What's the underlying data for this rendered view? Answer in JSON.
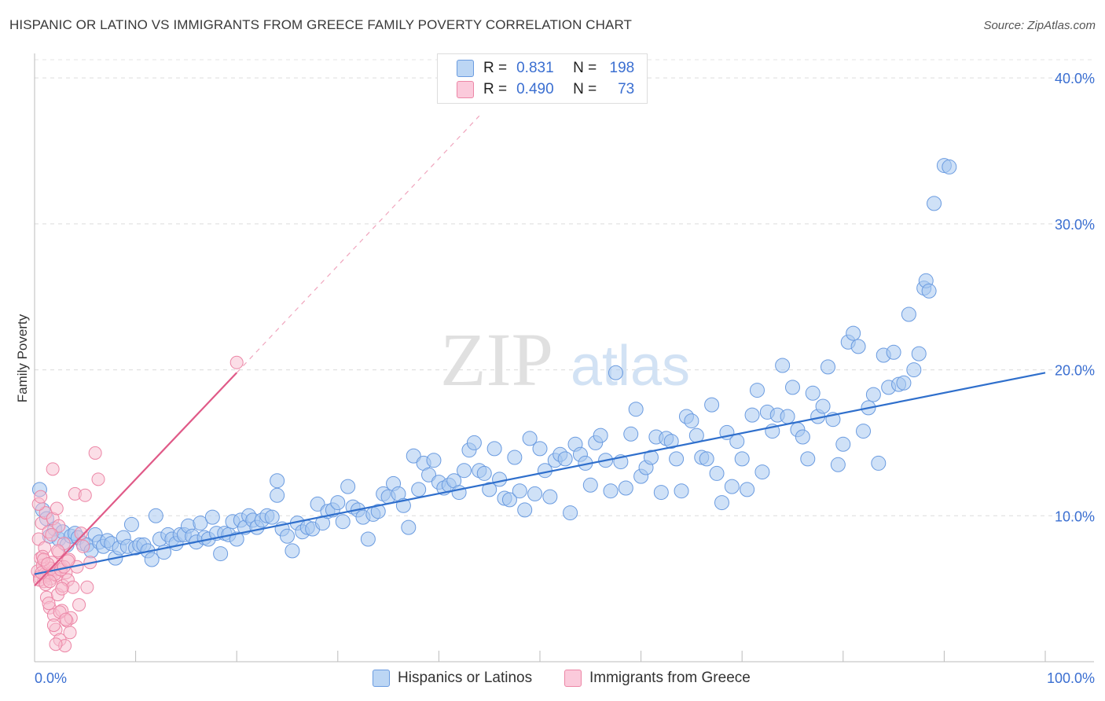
{
  "title": "HISPANIC OR LATINO VS IMMIGRANTS FROM GREECE FAMILY POVERTY CORRELATION CHART",
  "source": "Source: ZipAtlas.com",
  "watermark": {
    "zip": "ZIP",
    "atlas": "atlas"
  },
  "colors": {
    "blue_fill": "#a8c8f0",
    "blue_stroke": "#6a9be0",
    "blue_line": "#2f6fcc",
    "pink_fill": "#f8bdd0",
    "pink_stroke": "#ec86a6",
    "pink_line": "#e05a88",
    "axis_label": "#3b6fd1"
  },
  "legend": {
    "r_label": "R =",
    "n_label": "N =",
    "rows": [
      {
        "swatch": "blue",
        "r": "0.831",
        "n": "198"
      },
      {
        "swatch": "pink",
        "r": "0.490",
        "n": "73"
      }
    ]
  },
  "bottom_legend": [
    {
      "swatch": "blue",
      "label": "Hispanics or Latinos"
    },
    {
      "swatch": "pink",
      "label": "Immigrants from Greece"
    }
  ],
  "chart_data": {
    "type": "scatter",
    "xlabel": "",
    "ylabel": "Family Poverty",
    "xlim": [
      0,
      100
    ],
    "ylim": [
      0,
      42
    ],
    "x_tick_labels": [
      "0.0%",
      "100.0%"
    ],
    "y_ticks": [
      10,
      20,
      30,
      40
    ],
    "y_tick_labels": [
      "10.0%",
      "20.0%",
      "30.0%",
      "40.0%"
    ],
    "grid": "horizontal dashed",
    "series": [
      {
        "name": "Hispanics or Latinos",
        "color": "blue",
        "trend": {
          "x": [
            0,
            100
          ],
          "y": [
            6.0,
            19.8
          ],
          "style": "solid"
        },
        "points": [
          [
            0.5,
            11.8
          ],
          [
            0.8,
            10.4
          ],
          [
            1.2,
            9.8
          ],
          [
            1.5,
            8.6
          ],
          [
            2.0,
            9.1
          ],
          [
            2.4,
            8.4
          ],
          [
            2.8,
            8.9
          ],
          [
            3.2,
            8.0
          ],
          [
            3.6,
            8.6
          ],
          [
            4.0,
            8.8
          ],
          [
            4.3,
            8.5
          ],
          [
            4.8,
            8.1
          ],
          [
            5.2,
            8.0
          ],
          [
            5.6,
            7.6
          ],
          [
            6.0,
            8.7
          ],
          [
            6.4,
            8.2
          ],
          [
            6.8,
            7.9
          ],
          [
            7.2,
            8.3
          ],
          [
            7.6,
            8.1
          ],
          [
            8.0,
            7.1
          ],
          [
            8.4,
            7.8
          ],
          [
            8.8,
            8.5
          ],
          [
            9.2,
            7.9
          ],
          [
            9.6,
            9.4
          ],
          [
            10.0,
            7.8
          ],
          [
            10.4,
            8.0
          ],
          [
            10.8,
            8.0
          ],
          [
            11.2,
            7.6
          ],
          [
            11.6,
            7.0
          ],
          [
            12.0,
            10.0
          ],
          [
            12.4,
            8.4
          ],
          [
            12.8,
            7.5
          ],
          [
            13.2,
            8.7
          ],
          [
            13.6,
            8.4
          ],
          [
            14.0,
            8.1
          ],
          [
            14.4,
            8.7
          ],
          [
            14.8,
            8.7
          ],
          [
            15.2,
            9.3
          ],
          [
            15.6,
            8.6
          ],
          [
            16.0,
            8.2
          ],
          [
            16.4,
            9.5
          ],
          [
            16.8,
            8.5
          ],
          [
            17.2,
            8.4
          ],
          [
            17.6,
            9.9
          ],
          [
            18.0,
            8.8
          ],
          [
            18.4,
            7.4
          ],
          [
            18.8,
            8.8
          ],
          [
            19.2,
            8.7
          ],
          [
            19.6,
            9.6
          ],
          [
            20.0,
            8.4
          ],
          [
            20.4,
            9.7
          ],
          [
            20.8,
            9.2
          ],
          [
            21.2,
            10.0
          ],
          [
            21.6,
            9.7
          ],
          [
            22.0,
            9.2
          ],
          [
            22.5,
            9.7
          ],
          [
            23.0,
            10.0
          ],
          [
            23.5,
            9.9
          ],
          [
            24.0,
            11.4
          ],
          [
            24.0,
            12.4
          ],
          [
            24.5,
            9.1
          ],
          [
            25.0,
            8.6
          ],
          [
            25.5,
            7.6
          ],
          [
            26.0,
            9.5
          ],
          [
            26.5,
            8.9
          ],
          [
            27.0,
            9.2
          ],
          [
            27.5,
            9.1
          ],
          [
            28.0,
            10.8
          ],
          [
            28.5,
            9.5
          ],
          [
            29.0,
            10.3
          ],
          [
            29.5,
            10.4
          ],
          [
            30.0,
            10.9
          ],
          [
            30.5,
            9.6
          ],
          [
            31.0,
            12.0
          ],
          [
            31.5,
            10.6
          ],
          [
            32.0,
            10.4
          ],
          [
            32.5,
            9.9
          ],
          [
            33.0,
            8.4
          ],
          [
            33.5,
            10.1
          ],
          [
            34.0,
            10.3
          ],
          [
            34.5,
            11.5
          ],
          [
            35.0,
            11.3
          ],
          [
            35.5,
            12.2
          ],
          [
            36.0,
            11.5
          ],
          [
            36.5,
            10.7
          ],
          [
            37.0,
            9.2
          ],
          [
            37.5,
            14.1
          ],
          [
            38.0,
            11.8
          ],
          [
            38.5,
            13.6
          ],
          [
            39.0,
            12.8
          ],
          [
            39.5,
            13.8
          ],
          [
            40.0,
            12.3
          ],
          [
            40.5,
            11.9
          ],
          [
            41.0,
            12.1
          ],
          [
            41.5,
            12.4
          ],
          [
            42.0,
            11.6
          ],
          [
            42.5,
            13.1
          ],
          [
            43.0,
            14.5
          ],
          [
            43.5,
            15.0
          ],
          [
            44.0,
            13.1
          ],
          [
            44.5,
            12.9
          ],
          [
            45.0,
            11.8
          ],
          [
            45.5,
            14.6
          ],
          [
            46.0,
            12.5
          ],
          [
            46.5,
            11.2
          ],
          [
            47.0,
            11.1
          ],
          [
            47.5,
            14.0
          ],
          [
            48.0,
            11.7
          ],
          [
            48.5,
            10.4
          ],
          [
            49.0,
            15.3
          ],
          [
            49.5,
            11.5
          ],
          [
            50.0,
            14.6
          ],
          [
            50.5,
            13.1
          ],
          [
            51.0,
            11.3
          ],
          [
            51.5,
            13.8
          ],
          [
            52.0,
            14.2
          ],
          [
            52.5,
            13.9
          ],
          [
            53.0,
            10.2
          ],
          [
            53.5,
            14.9
          ],
          [
            54.0,
            14.2
          ],
          [
            54.5,
            13.6
          ],
          [
            55.0,
            12.1
          ],
          [
            55.5,
            15.0
          ],
          [
            56.0,
            15.5
          ],
          [
            56.5,
            13.8
          ],
          [
            57.0,
            11.7
          ],
          [
            57.5,
            19.8
          ],
          [
            58.0,
            13.7
          ],
          [
            58.5,
            11.9
          ],
          [
            59.0,
            15.6
          ],
          [
            59.5,
            17.3
          ],
          [
            60.0,
            12.7
          ],
          [
            60.5,
            13.3
          ],
          [
            61.0,
            14.0
          ],
          [
            61.5,
            15.4
          ],
          [
            62.0,
            11.6
          ],
          [
            62.5,
            15.3
          ],
          [
            63.0,
            15.1
          ],
          [
            63.5,
            13.9
          ],
          [
            64.0,
            11.7
          ],
          [
            64.5,
            16.8
          ],
          [
            65.0,
            16.5
          ],
          [
            65.5,
            15.5
          ],
          [
            66.0,
            14.0
          ],
          [
            66.5,
            13.9
          ],
          [
            67.0,
            17.6
          ],
          [
            67.5,
            12.9
          ],
          [
            68.0,
            10.9
          ],
          [
            68.5,
            15.7
          ],
          [
            69.0,
            12.0
          ],
          [
            69.5,
            15.1
          ],
          [
            70.0,
            13.9
          ],
          [
            70.5,
            11.8
          ],
          [
            71.0,
            16.9
          ],
          [
            71.5,
            18.6
          ],
          [
            72.0,
            13.0
          ],
          [
            72.5,
            17.1
          ],
          [
            73.0,
            15.8
          ],
          [
            73.5,
            16.9
          ],
          [
            74.0,
            20.3
          ],
          [
            74.5,
            16.8
          ],
          [
            75.0,
            18.8
          ],
          [
            75.5,
            15.9
          ],
          [
            76.0,
            15.4
          ],
          [
            76.5,
            13.9
          ],
          [
            77.0,
            18.4
          ],
          [
            77.5,
            16.8
          ],
          [
            78.0,
            17.5
          ],
          [
            78.5,
            20.2
          ],
          [
            79.0,
            16.6
          ],
          [
            79.5,
            13.5
          ],
          [
            80.0,
            14.9
          ],
          [
            80.5,
            21.9
          ],
          [
            81.0,
            22.5
          ],
          [
            81.5,
            21.6
          ],
          [
            82.0,
            15.8
          ],
          [
            82.5,
            17.4
          ],
          [
            83.0,
            18.3
          ],
          [
            83.5,
            13.6
          ],
          [
            84.0,
            21.0
          ],
          [
            84.5,
            18.8
          ],
          [
            85.0,
            21.2
          ],
          [
            85.5,
            19.0
          ],
          [
            86.0,
            19.1
          ],
          [
            86.5,
            23.8
          ],
          [
            87.0,
            20.0
          ],
          [
            87.5,
            21.1
          ],
          [
            88.0,
            25.6
          ],
          [
            88.2,
            26.1
          ],
          [
            88.5,
            25.4
          ],
          [
            89.0,
            31.4
          ],
          [
            90.0,
            34.0
          ],
          [
            90.5,
            33.9
          ]
        ]
      },
      {
        "name": "Immigrants from Greece",
        "color": "pink",
        "trend": {
          "x": [
            0,
            20
          ],
          "y": [
            5.2,
            19.8
          ],
          "style": "solid",
          "extended": {
            "x": [
              20,
              44
            ],
            "y": [
              19.8,
              37.4
            ],
            "style": "dashed"
          }
        },
        "points": [
          [
            0.3,
            6.2
          ],
          [
            0.4,
            8.4
          ],
          [
            0.5,
            5.8
          ],
          [
            0.6,
            7.1
          ],
          [
            0.7,
            9.5
          ],
          [
            0.8,
            6.6
          ],
          [
            0.9,
            5.5
          ],
          [
            1.0,
            7.8
          ],
          [
            1.1,
            10.2
          ],
          [
            1.2,
            4.4
          ],
          [
            1.3,
            6.0
          ],
          [
            1.4,
            8.9
          ],
          [
            1.5,
            3.7
          ],
          [
            1.6,
            5.7
          ],
          [
            1.7,
            6.8
          ],
          [
            1.8,
            9.8
          ],
          [
            1.9,
            3.2
          ],
          [
            2.0,
            6.3
          ],
          [
            2.1,
            2.2
          ],
          [
            2.2,
            5.9
          ],
          [
            2.3,
            4.6
          ],
          [
            2.4,
            7.5
          ],
          [
            2.5,
            1.5
          ],
          [
            2.6,
            6.5
          ],
          [
            2.7,
            3.5
          ],
          [
            2.8,
            5.2
          ],
          [
            2.9,
            8.1
          ],
          [
            3.0,
            1.1
          ],
          [
            3.1,
            6.1
          ],
          [
            3.2,
            2.8
          ],
          [
            3.3,
            5.6
          ],
          [
            3.4,
            7.0
          ],
          [
            3.5,
            2.0
          ],
          [
            3.6,
            3.0
          ],
          [
            3.8,
            5.1
          ],
          [
            4.0,
            11.5
          ],
          [
            4.2,
            6.5
          ],
          [
            4.4,
            3.9
          ],
          [
            4.6,
            8.8
          ],
          [
            4.8,
            7.9
          ],
          [
            5.0,
            11.4
          ],
          [
            5.2,
            5.1
          ],
          [
            5.5,
            6.8
          ],
          [
            6.0,
            14.3
          ],
          [
            6.3,
            12.5
          ],
          [
            0.4,
            10.8
          ],
          [
            0.6,
            11.3
          ],
          [
            0.8,
            7.2
          ],
          [
            1.0,
            6.0
          ],
          [
            1.2,
            5.9
          ],
          [
            1.4,
            4.0
          ],
          [
            1.6,
            6.4
          ],
          [
            1.8,
            13.2
          ],
          [
            2.0,
            6.0
          ],
          [
            2.2,
            10.5
          ],
          [
            2.4,
            9.3
          ],
          [
            2.6,
            6.3
          ],
          [
            0.5,
            5.6
          ],
          [
            0.7,
            6.1
          ],
          [
            0.9,
            7.0
          ],
          [
            1.1,
            5.3
          ],
          [
            1.3,
            6.7
          ],
          [
            1.5,
            5.5
          ],
          [
            1.7,
            8.7
          ],
          [
            1.9,
            2.5
          ],
          [
            2.1,
            1.2
          ],
          [
            2.3,
            7.6
          ],
          [
            2.5,
            3.4
          ],
          [
            2.7,
            5.0
          ],
          [
            2.9,
            6.5
          ],
          [
            3.1,
            2.9
          ],
          [
            3.3,
            6.9
          ],
          [
            20.0,
            20.5
          ]
        ]
      }
    ]
  }
}
